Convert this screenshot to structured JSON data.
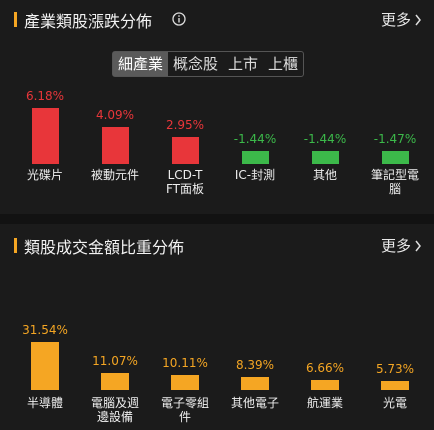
{
  "chart_data": [
    {
      "type": "bar",
      "title": "產業類股漲跌分佈",
      "more": "更多",
      "tabs": [
        "細產業",
        "概念股",
        "上市",
        "上櫃"
      ],
      "active_tab": 0,
      "categories": [
        "光碟片",
        "被動元件",
        "LCD-TFT面板",
        "IC-封測",
        "其他",
        "筆記型電腦"
      ],
      "values": [
        6.18,
        4.09,
        2.95,
        -1.44,
        -1.44,
        -1.47
      ],
      "value_labels": [
        "6.18%",
        "4.09%",
        "2.95%",
        "-1.44%",
        "-1.44%",
        "-1.47%"
      ],
      "colors": [
        "#e8363a",
        "#e8363a",
        "#e8363a",
        "#3cb94a",
        "#3cb94a",
        "#3cb94a"
      ]
    },
    {
      "type": "bar",
      "title": "類股成交金額比重分佈",
      "more": "更多",
      "categories": [
        "半導體",
        "電腦及週邊設備",
        "電子零組件",
        "其他電子",
        "航運業",
        "光電"
      ],
      "values": [
        31.54,
        11.07,
        10.11,
        8.39,
        6.66,
        5.73
      ],
      "value_labels": [
        "31.54%",
        "11.07%",
        "10.11%",
        "8.39%",
        "6.66%",
        "5.73%"
      ],
      "colors": [
        "#f5a623",
        "#f5a623",
        "#f5a623",
        "#f5a623",
        "#f5a623",
        "#f5a623"
      ]
    }
  ]
}
